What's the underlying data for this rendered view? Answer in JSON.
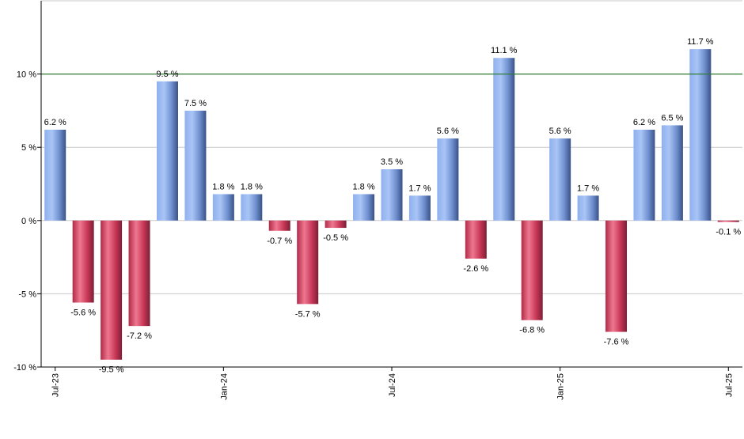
{
  "chart_data": {
    "type": "bar",
    "categories": [
      "Jul-23",
      "Aug-23",
      "Sep-23",
      "Oct-23",
      "Nov-23",
      "Dec-23",
      "Jan-24",
      "Feb-24",
      "Mar-24",
      "Apr-24",
      "May-24",
      "Jun-24",
      "Jul-24",
      "Aug-24",
      "Sep-24",
      "Oct-24",
      "Nov-24",
      "Dec-24",
      "Jan-25",
      "Feb-25",
      "Mar-25",
      "Apr-25",
      "May-25",
      "Jun-25",
      "Jul-25"
    ],
    "values": [
      6.2,
      -5.6,
      -9.5,
      -7.2,
      9.5,
      7.5,
      1.8,
      1.8,
      -0.7,
      -5.7,
      -0.5,
      1.8,
      3.5,
      1.7,
      5.6,
      -2.6,
      11.1,
      -6.8,
      5.6,
      1.7,
      -7.6,
      6.2,
      6.5,
      11.7,
      -0.1
    ],
    "data_labels": [
      "6.2 %",
      "-5.6 %",
      "-9.5 %",
      "-7.2 %",
      "9.5 %",
      "7.5 %",
      "1.8 %",
      "1.8 %",
      "-0.7 %",
      "-5.7 %",
      "-0.5 %",
      "1.8 %",
      "3.5 %",
      "1.7 %",
      "5.6 %",
      "-2.6 %",
      "11.1 %",
      "-6.8 %",
      "5.6 %",
      "1.7 %",
      "-7.6 %",
      "6.2 %",
      "6.5 %",
      "11.7 %",
      "-0.1 %"
    ],
    "x_tick_labels": [
      {
        "label": "Jul-23",
        "index": 0
      },
      {
        "label": "Jan-24",
        "index": 6
      },
      {
        "label": "Jul-24",
        "index": 12
      },
      {
        "label": "Jan-25",
        "index": 18
      },
      {
        "label": "Jul-25",
        "index": 24
      }
    ],
    "y_ticks": [
      -10,
      -5,
      0,
      5,
      10
    ],
    "y_tick_labels": [
      "-10 %",
      "-5 %",
      "0 %",
      "5 %",
      "10 %"
    ],
    "ylim": [
      -10,
      15
    ],
    "reference_line": 10,
    "grid": true,
    "title": "",
    "xlabel": "",
    "ylabel": "",
    "colors": {
      "positive": "#6a92dd",
      "positive_dark": "#3d5688",
      "positive_light": "#a8c4f5",
      "negative": "#d23a5a",
      "negative_dark": "#7e2237",
      "negative_light": "#f07a93",
      "reference_line": "#2e7d32",
      "grid": "#c8c8c8",
      "axis": "#000000"
    }
  }
}
